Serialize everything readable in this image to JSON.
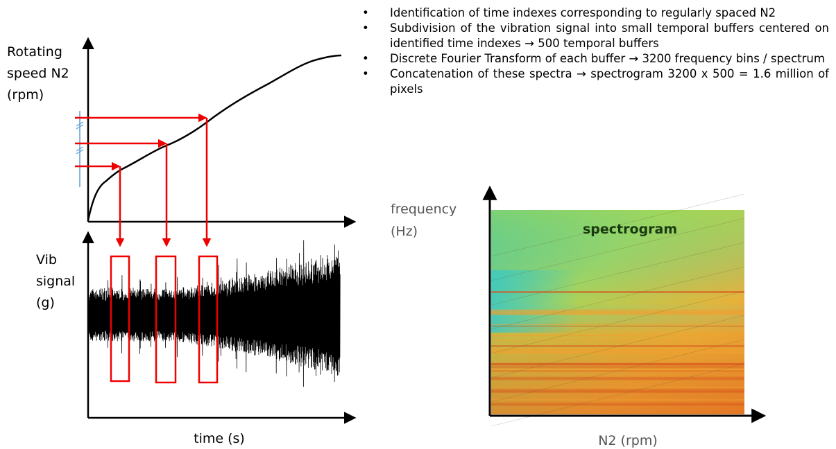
{
  "speed_plot": {
    "y_label": [
      "Rotating",
      "speed N2",
      "(rpm)"
    ]
  },
  "vib_plot": {
    "y_label": [
      "Vib",
      "signal",
      "(g)"
    ],
    "x_label": "time (s)"
  },
  "bullets": [
    "Identification of time indexes corresponding to regularly spaced N2",
    "Subdivision of the vibration signal into small temporal buffers centered on identified time indexes → 500 temporal buffers",
    "Discrete Fourier Transform of each buffer → 3200 frequency bins / spectrum",
    "Concatenation of these spectra → spectrogram 3200 x 500 = 1.6 million of pixels"
  ],
  "spectrogram": {
    "y_label": [
      "frequency",
      "(Hz)"
    ],
    "title": "spectrogram",
    "x_label": "N2 (rpm)"
  }
}
